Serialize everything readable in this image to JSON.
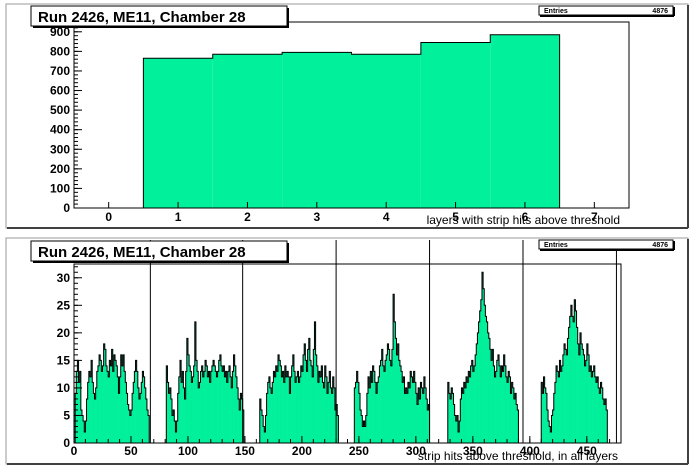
{
  "chart_data": [
    {
      "type": "bar",
      "title": "Run 2426, ME11, Chamber 28",
      "xlabel": "layers with strip hits above threshold",
      "ylabel": "",
      "xlim": [
        -0.5,
        7.5
      ],
      "ylim": [
        0,
        950
      ],
      "xticks": [
        "0",
        "1",
        "2",
        "3",
        "4",
        "5",
        "6",
        "7"
      ],
      "yticks": [
        "0",
        "100",
        "200",
        "300",
        "400",
        "500",
        "600",
        "700",
        "800",
        "900"
      ],
      "stats": {
        "label": "Entries",
        "value": "4876"
      },
      "fill_color": "#00f09b",
      "categories": [
        "1",
        "2",
        "3",
        "4",
        "5",
        "6"
      ],
      "values": [
        765,
        785,
        795,
        785,
        845,
        885
      ]
    },
    {
      "type": "bar",
      "title": "Run 2426, ME11, Chamber 28",
      "xlabel": "strip hits above threshold, in all layers",
      "ylabel": "",
      "xlim": [
        0,
        480
      ],
      "ylim": [
        0,
        32.5
      ],
      "xticks": [
        "0",
        "50",
        "100",
        "150",
        "200",
        "250",
        "300",
        "350",
        "400",
        "450"
      ],
      "yticks": [
        "0",
        "5",
        "10",
        "15",
        "20",
        "25",
        "30"
      ],
      "stats": {
        "label": "Entries",
        "value": "4876"
      },
      "fill_color": "#00f09b",
      "segments": [
        {
          "start": 1,
          "values": [
            9,
            13,
            15,
            11,
            13,
            6,
            5,
            4,
            2,
            4,
            8,
            11,
            13,
            12,
            15,
            11,
            9,
            8,
            10,
            13,
            14,
            16,
            15,
            13,
            14,
            18,
            17,
            14,
            13,
            12,
            15,
            14,
            17,
            13,
            16,
            15,
            14,
            12,
            9,
            12,
            16,
            14,
            16,
            13,
            11,
            9,
            7,
            6,
            5,
            6,
            9,
            11,
            13,
            15,
            13,
            10,
            8,
            9,
            11,
            13,
            12,
            10,
            8,
            6,
            5
          ]
        },
        {
          "start": 81,
          "values": [
            14,
            11,
            9,
            10,
            8,
            5,
            6,
            4,
            2,
            4,
            9,
            12,
            15,
            11,
            13,
            10,
            8,
            13,
            19,
            16,
            14,
            13,
            11,
            12,
            14,
            22,
            15,
            13,
            10,
            11,
            13,
            14,
            12,
            13,
            15,
            14,
            12,
            13,
            11,
            13,
            14,
            15,
            14,
            13,
            12,
            13,
            15,
            16,
            14,
            13,
            14,
            12,
            13,
            11,
            13,
            14,
            12,
            10,
            13,
            16,
            14,
            12,
            10,
            8,
            6,
            9,
            8,
            6
          ]
        },
        {
          "start": 163,
          "values": [
            8,
            6,
            5,
            3,
            2,
            5,
            9,
            11,
            12,
            10,
            9,
            11,
            13,
            12,
            14,
            13,
            16,
            15,
            14,
            12,
            13,
            11,
            14,
            12,
            13,
            12,
            9,
            12,
            14,
            16,
            13,
            11,
            12,
            13,
            11,
            12,
            14,
            13,
            16,
            18,
            15,
            13,
            17,
            19,
            15,
            14,
            12,
            17,
            22,
            16,
            14,
            11,
            13,
            12,
            14,
            11,
            10,
            14,
            12,
            9,
            11,
            13,
            10,
            9,
            12,
            10,
            6,
            7,
            5
          ]
        },
        {
          "start": 246,
          "values": [
            10,
            11,
            13,
            11,
            9,
            6,
            5,
            3,
            4,
            3,
            5,
            9,
            12,
            10,
            13,
            11,
            14,
            13,
            11,
            9,
            11,
            12,
            14,
            15,
            17,
            14,
            13,
            15,
            16,
            18,
            17,
            15,
            14,
            17,
            27,
            22,
            19,
            16,
            18,
            15,
            14,
            13,
            11,
            12,
            9,
            10,
            9,
            11,
            10,
            13,
            12,
            11,
            13,
            11,
            9,
            7,
            10,
            8,
            11,
            10,
            9,
            12,
            10,
            8,
            6,
            7
          ]
        },
        {
          "start": 328,
          "values": [
            11,
            9,
            8,
            10,
            9,
            7,
            5,
            4,
            5,
            2,
            4,
            8,
            10,
            9,
            11,
            10,
            12,
            11,
            13,
            12,
            14,
            15,
            13,
            14,
            16,
            18,
            20,
            22,
            24,
            26,
            31,
            28,
            25,
            23,
            22,
            20,
            19,
            17,
            15,
            17,
            14,
            12,
            13,
            15,
            16,
            14,
            12,
            14,
            13,
            16,
            14,
            12,
            11,
            13,
            12,
            9,
            11,
            10,
            8,
            9,
            7,
            6
          ]
        },
        {
          "start": 410,
          "values": [
            11,
            9,
            12,
            10,
            9,
            6,
            4,
            3,
            2,
            5,
            6,
            9,
            11,
            14,
            13,
            12,
            15,
            13,
            14,
            16,
            18,
            17,
            16,
            19,
            21,
            23,
            25,
            23,
            22,
            26,
            24,
            21,
            18,
            16,
            20,
            18,
            17,
            16,
            14,
            15,
            18,
            16,
            13,
            14,
            12,
            13,
            14,
            12,
            11,
            12,
            10,
            9,
            11,
            10,
            8,
            7,
            8,
            6
          ]
        }
      ],
      "separators": [
        67,
        148,
        230,
        312,
        394,
        476
      ]
    }
  ]
}
